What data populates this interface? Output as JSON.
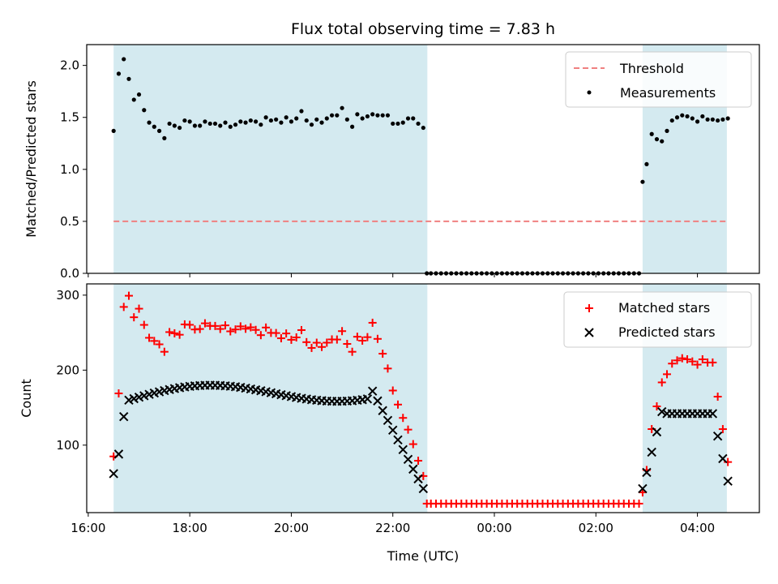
{
  "chart_data": {
    "type": "scatter",
    "title": "Flux total observing time = 7.83 h",
    "xlabel": "Time (UTC)",
    "x_ticks": [
      "16:00",
      "18:00",
      "20:00",
      "22:00",
      "00:00",
      "02:00",
      "04:00"
    ],
    "x_tick_hours": [
      16,
      18,
      20,
      22,
      24,
      26,
      28
    ],
    "x_range_hours": [
      15.97,
      29.22
    ],
    "shaded_intervals_hours": [
      [
        16.5,
        22.68
      ],
      [
        26.92,
        28.58
      ]
    ],
    "shade_color": "#d4eaf0",
    "top": {
      "ylabel": "Matched/Predicted stars",
      "ylim": [
        0,
        2.2
      ],
      "y_ticks": [
        0.0,
        0.5,
        1.0,
        1.5,
        2.0
      ],
      "y_tick_labels": [
        "0.0",
        "0.5",
        "1.0",
        "1.5",
        "2.0"
      ],
      "threshold": 0.5,
      "threshold_color": "#f08080",
      "legend": [
        "Threshold",
        "Measurements"
      ],
      "legend_position": "top-right",
      "measurements": {
        "x": [
          16.5,
          16.6,
          16.7,
          16.8,
          16.9,
          17.0,
          17.1,
          17.2,
          17.3,
          17.4,
          17.5,
          17.6,
          17.7,
          17.8,
          17.9,
          18.0,
          18.1,
          18.2,
          18.3,
          18.4,
          18.5,
          18.6,
          18.7,
          18.8,
          18.9,
          19.0,
          19.1,
          19.2,
          19.3,
          19.4,
          19.5,
          19.6,
          19.7,
          19.8,
          19.9,
          20.0,
          20.1,
          20.2,
          20.3,
          20.4,
          20.5,
          20.6,
          20.7,
          20.8,
          20.9,
          21.0,
          21.1,
          21.2,
          21.3,
          21.4,
          21.5,
          21.6,
          21.7,
          21.8,
          21.9,
          22.0,
          22.1,
          22.2,
          22.3,
          22.4,
          22.5,
          22.6,
          22.67,
          22.75,
          22.85,
          22.95,
          23.05,
          23.15,
          23.25,
          23.35,
          23.45,
          23.55,
          23.65,
          23.75,
          23.85,
          23.95,
          24.05,
          24.15,
          24.25,
          24.35,
          24.45,
          24.55,
          24.65,
          24.75,
          24.85,
          24.95,
          25.05,
          25.15,
          25.25,
          25.35,
          25.45,
          25.55,
          25.65,
          25.75,
          25.85,
          25.95,
          26.05,
          26.15,
          26.25,
          26.35,
          26.45,
          26.55,
          26.65,
          26.75,
          26.85,
          26.92,
          27.0,
          27.1,
          27.2,
          27.3,
          27.4,
          27.5,
          27.6,
          27.7,
          27.8,
          27.9,
          28.0,
          28.1,
          28.2,
          28.3,
          28.4,
          28.5,
          28.6
        ],
        "y": [
          1.37,
          1.92,
          2.06,
          1.87,
          1.67,
          1.72,
          1.57,
          1.45,
          1.41,
          1.37,
          1.3,
          1.44,
          1.42,
          1.4,
          1.47,
          1.46,
          1.42,
          1.42,
          1.46,
          1.44,
          1.44,
          1.42,
          1.45,
          1.41,
          1.43,
          1.46,
          1.45,
          1.47,
          1.46,
          1.43,
          1.5,
          1.47,
          1.48,
          1.45,
          1.5,
          1.46,
          1.49,
          1.56,
          1.47,
          1.43,
          1.48,
          1.45,
          1.49,
          1.52,
          1.52,
          1.59,
          1.48,
          1.41,
          1.53,
          1.49,
          1.51,
          1.53,
          1.52,
          1.52,
          1.52,
          1.44,
          1.44,
          1.45,
          1.49,
          1.49,
          1.44,
          1.4,
          0.0,
          0.0,
          0.0,
          0.0,
          0.0,
          0.0,
          0.0,
          0.0,
          0.0,
          0.0,
          0.0,
          0.0,
          0.0,
          0.0,
          0.0,
          0.0,
          0.0,
          0.0,
          0.0,
          0.0,
          0.0,
          0.0,
          0.0,
          0.0,
          0.0,
          0.0,
          0.0,
          0.0,
          0.0,
          0.0,
          0.0,
          0.0,
          0.0,
          0.0,
          0.0,
          0.0,
          0.0,
          0.0,
          0.0,
          0.0,
          0.0,
          0.0,
          0.0,
          0.88,
          1.05,
          1.34,
          1.29,
          1.27,
          1.37,
          1.47,
          1.5,
          1.52,
          1.51,
          1.49,
          1.46,
          1.51,
          1.48,
          1.48,
          1.47,
          1.48,
          1.49
        ]
      }
    },
    "bottom": {
      "ylabel": "Count",
      "ylim": [
        10,
        315
      ],
      "y_ticks": [
        100,
        200,
        300
      ],
      "y_tick_labels": [
        "100",
        "200",
        "300"
      ],
      "legend": [
        "Matched stars",
        "Predicted stars"
      ],
      "legend_position": "top-right",
      "series_colors": [
        "#ff0000",
        "#000000"
      ]
    }
  }
}
